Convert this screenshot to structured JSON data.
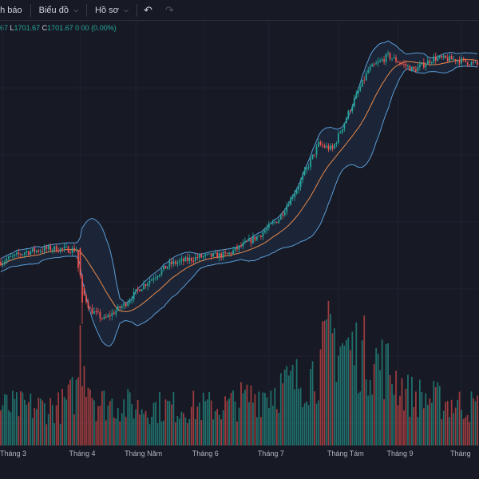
{
  "toolbar": {
    "alerts_label": "nh báo",
    "chart_label": "Biểu đồ",
    "profile_label": "Hồ sơ",
    "undo_icon": "undo-icon",
    "redo_icon": "redo-icon"
  },
  "legend": {
    "o_value": "67",
    "l_key": "L",
    "l_value": "1701.67",
    "c_key": "C",
    "c_value": "1701.67",
    "change": "0.00 (0.00%)"
  },
  "colors": {
    "background": "#171a24",
    "up": "#26a69a",
    "down": "#ef5350",
    "volume_up": "#26a69a",
    "volume_down": "#ef5350",
    "bollinger": "#5b9bd5",
    "bollinger_fill": "#1d2a3d",
    "ma": "#e8884a"
  },
  "chart_data": {
    "type": "candlestick",
    "indicators": [
      "Bollinger Bands",
      "Moving Average",
      "Volume"
    ],
    "grid": true,
    "x_tick_labels": [
      "Tháng 3",
      "Tháng 4",
      "Tháng Năm",
      "Tháng 6",
      "Tháng 7",
      "Tháng Tám",
      "Tháng 9",
      "Tháng"
    ],
    "x_tick_index": [
      1,
      40,
      68,
      102,
      135,
      170,
      200,
      232
    ],
    "price_anchors": [
      [
        0,
        1290
      ],
      [
        12,
        1310
      ],
      [
        25,
        1318
      ],
      [
        38,
        1315
      ],
      [
        40,
        1240
      ],
      [
        45,
        1190
      ],
      [
        52,
        1170
      ],
      [
        62,
        1200
      ],
      [
        70,
        1235
      ],
      [
        85,
        1285
      ],
      [
        100,
        1300
      ],
      [
        114,
        1305
      ],
      [
        130,
        1345
      ],
      [
        140,
        1380
      ],
      [
        150,
        1450
      ],
      [
        160,
        1535
      ],
      [
        167,
        1525
      ],
      [
        176,
        1610
      ],
      [
        185,
        1690
      ],
      [
        195,
        1720
      ],
      [
        208,
        1690
      ],
      [
        218,
        1715
      ],
      [
        230,
        1712
      ],
      [
        240,
        1702
      ]
    ],
    "volume_anchors": [
      [
        0,
        30
      ],
      [
        30,
        30
      ],
      [
        38,
        42
      ],
      [
        40,
        80
      ],
      [
        44,
        55
      ],
      [
        48,
        34
      ],
      [
        70,
        30
      ],
      [
        100,
        30
      ],
      [
        112,
        30
      ],
      [
        130,
        40
      ],
      [
        140,
        45
      ],
      [
        150,
        50
      ],
      [
        160,
        60
      ],
      [
        166,
        85
      ],
      [
        175,
        75
      ],
      [
        185,
        70
      ],
      [
        195,
        60
      ],
      [
        205,
        40
      ],
      [
        220,
        35
      ],
      [
        240,
        30
      ]
    ],
    "last_close": 1701.67
  }
}
